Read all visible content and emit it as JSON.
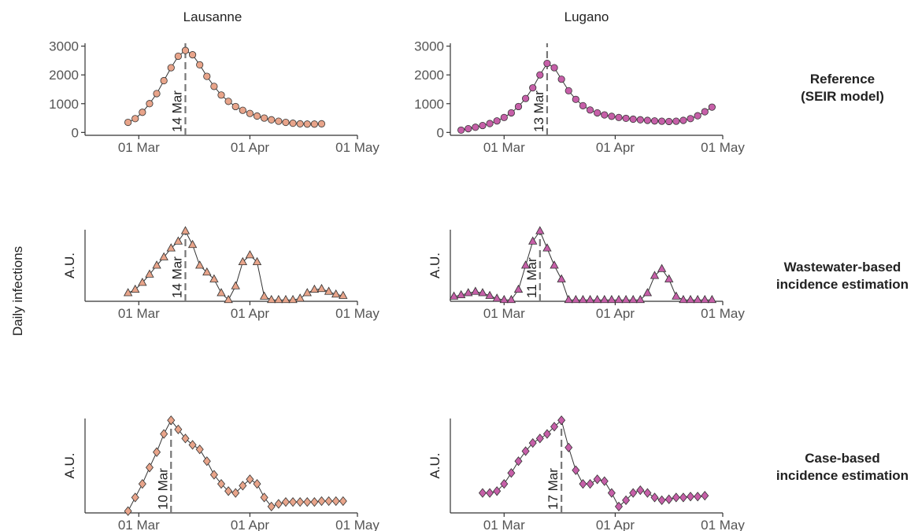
{
  "columns": [
    "Lausanne",
    "Lugano"
  ],
  "rows": [
    [
      "Reference",
      "(SEIR model)"
    ],
    [
      "Wastewater-based",
      "incidence estimation"
    ],
    [
      "Case-based",
      "incidence estimation"
    ]
  ],
  "ylabel": "Daily infections",
  "chart_data": [
    {
      "type": "line",
      "marker": "circle",
      "color": "#e8a48a",
      "x": [
        -3,
        -1,
        1,
        3,
        5,
        7,
        9,
        11,
        13,
        15,
        17,
        19,
        21,
        23,
        25,
        27,
        29,
        31,
        33,
        35,
        37,
        39,
        41,
        43,
        45,
        47,
        49,
        51
      ],
      "values": [
        350,
        480,
        700,
        1000,
        1350,
        1800,
        2250,
        2650,
        2850,
        2700,
        2350,
        1950,
        1600,
        1300,
        1080,
        900,
        770,
        660,
        570,
        500,
        440,
        390,
        350,
        320,
        300,
        290,
        290,
        300
      ],
      "xlim": [
        -15,
        61
      ],
      "xticks": [
        {
          "value": 0,
          "label": "01 Mar"
        },
        {
          "value": 31,
          "label": "01 Apr"
        },
        {
          "value": 61,
          "label": "01 May"
        }
      ],
      "ylim": [
        -100,
        3100
      ],
      "yticks": [
        0,
        1000,
        2000,
        3000
      ],
      "annotation": {
        "x": 13,
        "label": "14 Mar"
      }
    },
    {
      "type": "line",
      "marker": "circle",
      "color": "#c65fa8",
      "x": [
        -12,
        -10,
        -8,
        -6,
        -4,
        -2,
        0,
        2,
        4,
        6,
        8,
        10,
        12,
        14,
        16,
        18,
        20,
        22,
        24,
        26,
        28,
        30,
        32,
        34,
        36,
        38,
        40,
        42,
        44,
        46,
        48,
        50,
        52,
        54,
        56,
        58
      ],
      "values": [
        80,
        130,
        180,
        240,
        310,
        400,
        520,
        680,
        900,
        1180,
        1550,
        2000,
        2400,
        2250,
        1850,
        1450,
        1150,
        930,
        780,
        680,
        610,
        560,
        520,
        490,
        460,
        440,
        420,
        400,
        390,
        380,
        390,
        420,
        480,
        580,
        720,
        880
      ],
      "xlim": [
        -15,
        61
      ],
      "xticks": [
        {
          "value": 0,
          "label": "01 Mar"
        },
        {
          "value": 31,
          "label": "01 Apr"
        },
        {
          "value": 61,
          "label": "01 May"
        }
      ],
      "ylim": [
        -100,
        3100
      ],
      "yticks": [
        0,
        1000,
        2000,
        3000
      ],
      "annotation": {
        "x": 12,
        "label": "13 Mar"
      }
    },
    {
      "type": "line",
      "marker": "triangle",
      "color": "#e8a48a",
      "ylabel": "A.U.",
      "x": [
        -3,
        -1,
        1,
        3,
        5,
        7,
        9,
        11,
        13,
        15,
        17,
        19,
        21,
        23,
        25,
        27,
        29,
        31,
        33,
        35,
        37,
        39,
        41,
        43,
        45,
        47,
        49,
        51,
        53,
        55,
        57
      ],
      "values": [
        0.1,
        0.15,
        0.25,
        0.37,
        0.5,
        0.62,
        0.75,
        0.85,
        1.0,
        0.8,
        0.5,
        0.4,
        0.3,
        0.1,
        0.0,
        0.2,
        0.55,
        0.65,
        0.55,
        0.05,
        0.0,
        0.0,
        0.0,
        0.0,
        0.02,
        0.1,
        0.15,
        0.16,
        0.12,
        0.08,
        0.06
      ],
      "xlim": [
        -15,
        61
      ],
      "xticks": [
        {
          "value": 0,
          "label": "01 Mar"
        },
        {
          "value": 31,
          "label": "01 Apr"
        },
        {
          "value": 61,
          "label": "01 May"
        }
      ],
      "ylim": [
        -0.02,
        1.02
      ],
      "annotation": {
        "x": 13,
        "label": "14 Mar"
      }
    },
    {
      "type": "line",
      "marker": "triangle",
      "color": "#c65fa8",
      "ylabel": "A.U.",
      "x": [
        -14,
        -12,
        -10,
        -8,
        -6,
        -4,
        -2,
        0,
        2,
        4,
        6,
        8,
        10,
        12,
        14,
        16,
        18,
        20,
        22,
        24,
        26,
        28,
        30,
        32,
        34,
        36,
        38,
        40,
        42,
        44,
        46,
        48,
        50,
        52,
        54,
        56,
        58
      ],
      "values": [
        0.05,
        0.07,
        0.1,
        0.12,
        0.1,
        0.06,
        0.02,
        0,
        0,
        0.15,
        0.5,
        0.85,
        1.0,
        0.75,
        0.5,
        0.3,
        0,
        0,
        0,
        0,
        0,
        0,
        0,
        0,
        0,
        0,
        0,
        0.1,
        0.35,
        0.45,
        0.3,
        0.05,
        0,
        0,
        0,
        0,
        0
      ],
      "xlim": [
        -15,
        61
      ],
      "xticks": [
        {
          "value": 0,
          "label": "01 Mar"
        },
        {
          "value": 31,
          "label": "01 Apr"
        },
        {
          "value": 61,
          "label": "01 May"
        }
      ],
      "ylim": [
        -0.02,
        1.02
      ],
      "annotation": {
        "x": 10,
        "label": "11 Mar"
      }
    },
    {
      "type": "line",
      "marker": "diamond",
      "color": "#e8a48a",
      "ylabel": "A.U.",
      "x": [
        -3,
        -1,
        1,
        3,
        5,
        7,
        9,
        11,
        13,
        15,
        17,
        19,
        21,
        23,
        25,
        27,
        29,
        31,
        33,
        35,
        37,
        39,
        41,
        43,
        45,
        47,
        49,
        51,
        53,
        55,
        57
      ],
      "values": [
        0,
        0.15,
        0.3,
        0.48,
        0.65,
        0.85,
        1.0,
        0.9,
        0.8,
        0.73,
        0.68,
        0.55,
        0.4,
        0.3,
        0.22,
        0.2,
        0.28,
        0.35,
        0.3,
        0.15,
        0.05,
        0.08,
        0.1,
        0.1,
        0.1,
        0.1,
        0.1,
        0.11,
        0.11,
        0.11,
        0.11
      ],
      "xlim": [
        -15,
        61
      ],
      "xticks": [
        {
          "value": 0,
          "label": "01 Mar"
        },
        {
          "value": 31,
          "label": "01 Apr"
        },
        {
          "value": 61,
          "label": "01 May"
        }
      ],
      "ylim": [
        -0.02,
        1.02
      ],
      "annotation": {
        "x": 9,
        "label": "10 Mar"
      }
    },
    {
      "type": "line",
      "marker": "diamond",
      "color": "#c65fa8",
      "ylabel": "A.U.",
      "x": [
        -6,
        -4,
        -2,
        0,
        2,
        4,
        6,
        8,
        10,
        12,
        14,
        16,
        18,
        20,
        22,
        24,
        26,
        28,
        30,
        32,
        34,
        36,
        38,
        40,
        42,
        44,
        46,
        48,
        50,
        52,
        54,
        56
      ],
      "values": [
        0.2,
        0.2,
        0.22,
        0.3,
        0.42,
        0.55,
        0.66,
        0.75,
        0.8,
        0.85,
        0.93,
        1.0,
        0.7,
        0.45,
        0.3,
        0.3,
        0.35,
        0.33,
        0.2,
        0.05,
        0.12,
        0.2,
        0.23,
        0.2,
        0.15,
        0.12,
        0.13,
        0.15,
        0.15,
        0.16,
        0.16,
        0.17
      ],
      "xlim": [
        -15,
        61
      ],
      "xticks": [
        {
          "value": 0,
          "label": "01 Mar"
        },
        {
          "value": 31,
          "label": "01 Apr"
        },
        {
          "value": 61,
          "label": "01 May"
        }
      ],
      "ylim": [
        -0.02,
        1.02
      ],
      "annotation": {
        "x": 16,
        "label": "17 Mar"
      }
    }
  ]
}
